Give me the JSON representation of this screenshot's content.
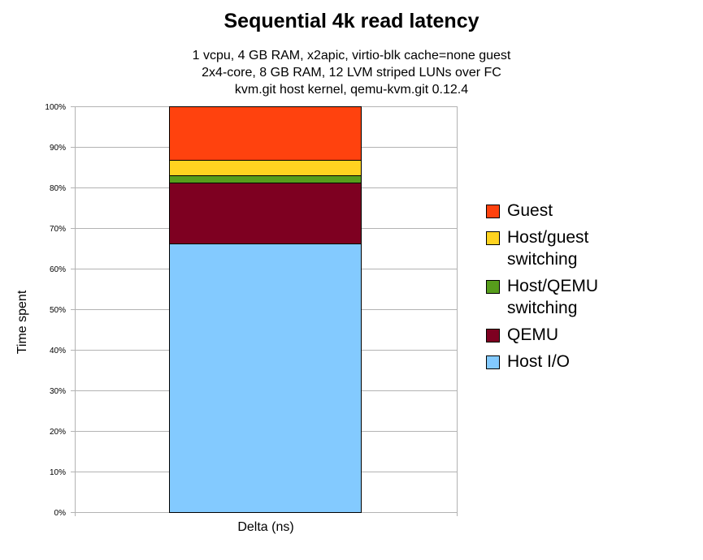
{
  "chart_data": {
    "type": "bar",
    "stacked": true,
    "title": "Sequential 4k read latency",
    "subtitle": [
      "1 vcpu, 4 GB RAM, x2apic, virtio-blk cache=none guest",
      "2x4-core, 8 GB RAM, 12 LVM striped LUNs over FC",
      "kvm.git host kernel, qemu-kvm.git 0.12.4"
    ],
    "xlabel": "Delta (ns)",
    "ylabel": "Time spent",
    "categories": [
      ""
    ],
    "ylim": [
      0,
      100
    ],
    "yticks": [
      "0%",
      "10%",
      "20%",
      "30%",
      "40%",
      "50%",
      "60%",
      "70%",
      "80%",
      "90%",
      "100%"
    ],
    "grid": true,
    "legend_position": "right",
    "series": [
      {
        "name": "Host I/O",
        "values": [
          66.2
        ],
        "color": "#83caff"
      },
      {
        "name": "QEMU",
        "values": [
          15.0
        ],
        "color": "#7e0021"
      },
      {
        "name": "Host/QEMU switching",
        "values": [
          1.8
        ],
        "color": "#579d1c"
      },
      {
        "name": "Host/guest switching",
        "values": [
          3.8
        ],
        "color": "#ffd320"
      },
      {
        "name": "Guest",
        "values": [
          13.2
        ],
        "color": "#ff420e"
      }
    ],
    "legend_order": [
      "Guest",
      "Host/guest switching",
      "Host/QEMU switching",
      "QEMU",
      "Host I/O"
    ]
  }
}
